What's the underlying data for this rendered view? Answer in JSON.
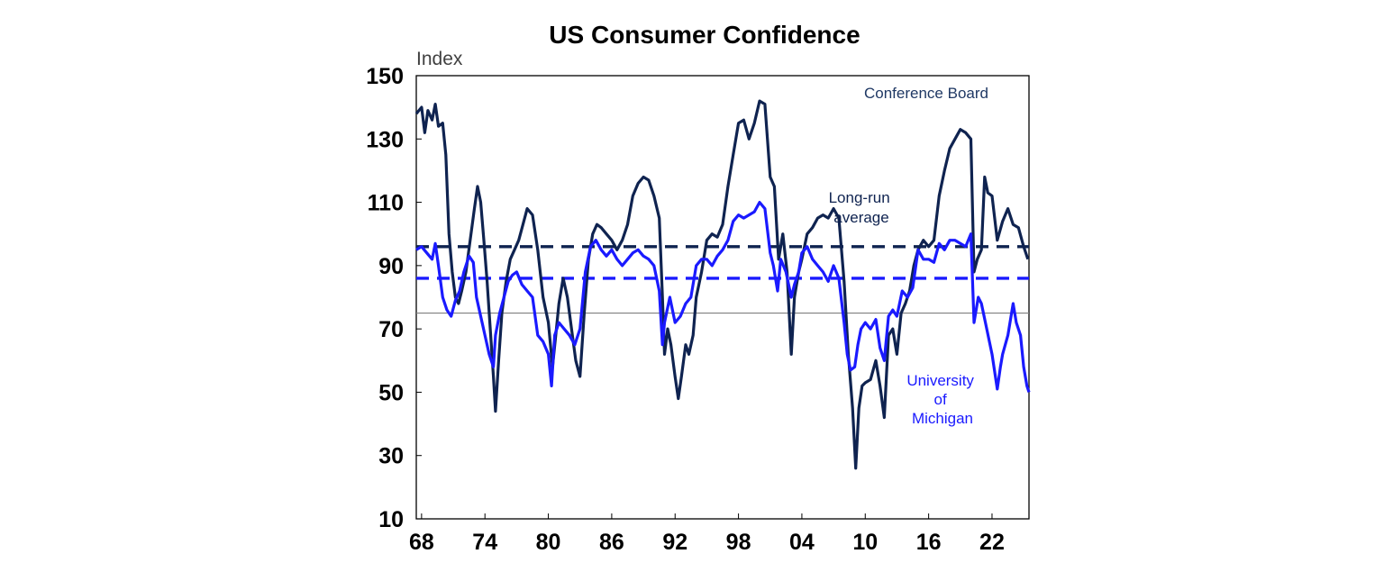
{
  "chart_data": {
    "type": "line",
    "title": "US Consumer Confidence",
    "ylabel": "Index",
    "xlabel": "",
    "ylim": [
      10,
      150
    ],
    "xlim": [
      1967.5,
      2025.5
    ],
    "yticks": [
      10,
      30,
      50,
      70,
      90,
      110,
      130,
      150
    ],
    "xticks": [
      {
        "label": "68",
        "x": 1968
      },
      {
        "label": "74",
        "x": 1974
      },
      {
        "label": "80",
        "x": 1980
      },
      {
        "label": "86",
        "x": 1986
      },
      {
        "label": "92",
        "x": 1992
      },
      {
        "label": "98",
        "x": 1998
      },
      {
        "label": "04",
        "x": 2004
      },
      {
        "label": "10",
        "x": 2010
      },
      {
        "label": "16",
        "x": 2016
      },
      {
        "label": "22",
        "x": 2022
      }
    ],
    "grid": false,
    "reference_line": {
      "y": 75,
      "color": "#808080"
    },
    "series": [
      {
        "name": "Conference Board",
        "color": "#0f2350",
        "long_run_average": 96,
        "points": [
          [
            1967.5,
            138
          ],
          [
            1968.0,
            140
          ],
          [
            1968.3,
            132
          ],
          [
            1968.6,
            139
          ],
          [
            1969.0,
            136
          ],
          [
            1969.3,
            141
          ],
          [
            1969.6,
            134
          ],
          [
            1970.0,
            135
          ],
          [
            1970.3,
            125
          ],
          [
            1970.6,
            100
          ],
          [
            1970.9,
            88
          ],
          [
            1971.2,
            80
          ],
          [
            1971.5,
            78
          ],
          [
            1971.8,
            82
          ],
          [
            1972.2,
            88
          ],
          [
            1972.6,
            98
          ],
          [
            1973.0,
            108
          ],
          [
            1973.3,
            115
          ],
          [
            1973.6,
            110
          ],
          [
            1973.9,
            98
          ],
          [
            1974.2,
            85
          ],
          [
            1974.5,
            70
          ],
          [
            1974.8,
            55
          ],
          [
            1975.0,
            44
          ],
          [
            1975.3,
            60
          ],
          [
            1975.6,
            75
          ],
          [
            1976.0,
            85
          ],
          [
            1976.4,
            92
          ],
          [
            1976.8,
            95
          ],
          [
            1977.2,
            98
          ],
          [
            1977.6,
            103
          ],
          [
            1978.0,
            108
          ],
          [
            1978.5,
            106
          ],
          [
            1979.0,
            95
          ],
          [
            1979.5,
            80
          ],
          [
            1980.0,
            72
          ],
          [
            1980.4,
            58
          ],
          [
            1980.7,
            68
          ],
          [
            1981.0,
            78
          ],
          [
            1981.4,
            86
          ],
          [
            1981.8,
            80
          ],
          [
            1982.2,
            70
          ],
          [
            1982.6,
            60
          ],
          [
            1983.0,
            55
          ],
          [
            1983.4,
            75
          ],
          [
            1983.8,
            92
          ],
          [
            1984.2,
            100
          ],
          [
            1984.6,
            103
          ],
          [
            1985.0,
            102
          ],
          [
            1985.5,
            100
          ],
          [
            1986.0,
            98
          ],
          [
            1986.5,
            95
          ],
          [
            1987.0,
            98
          ],
          [
            1987.5,
            103
          ],
          [
            1988.0,
            112
          ],
          [
            1988.5,
            116
          ],
          [
            1989.0,
            118
          ],
          [
            1989.5,
            117
          ],
          [
            1990.0,
            112
          ],
          [
            1990.5,
            105
          ],
          [
            1990.8,
            80
          ],
          [
            1991.0,
            62
          ],
          [
            1991.3,
            70
          ],
          [
            1991.6,
            65
          ],
          [
            1992.0,
            55
          ],
          [
            1992.3,
            48
          ],
          [
            1992.6,
            55
          ],
          [
            1993.0,
            65
          ],
          [
            1993.3,
            62
          ],
          [
            1993.7,
            68
          ],
          [
            1994.0,
            80
          ],
          [
            1994.5,
            88
          ],
          [
            1995.0,
            98
          ],
          [
            1995.5,
            100
          ],
          [
            1996.0,
            99
          ],
          [
            1996.5,
            103
          ],
          [
            1997.0,
            115
          ],
          [
            1997.5,
            125
          ],
          [
            1998.0,
            135
          ],
          [
            1998.5,
            136
          ],
          [
            1999.0,
            130
          ],
          [
            1999.5,
            135
          ],
          [
            2000.0,
            142
          ],
          [
            2000.5,
            141
          ],
          [
            2001.0,
            118
          ],
          [
            2001.4,
            115
          ],
          [
            2001.8,
            92
          ],
          [
            2002.2,
            100
          ],
          [
            2002.6,
            88
          ],
          [
            2003.0,
            62
          ],
          [
            2003.3,
            80
          ],
          [
            2003.7,
            88
          ],
          [
            2004.0,
            92
          ],
          [
            2004.5,
            100
          ],
          [
            2005.0,
            102
          ],
          [
            2005.5,
            105
          ],
          [
            2006.0,
            106
          ],
          [
            2006.5,
            105
          ],
          [
            2007.0,
            108
          ],
          [
            2007.5,
            105
          ],
          [
            2008.0,
            85
          ],
          [
            2008.4,
            62
          ],
          [
            2008.8,
            45
          ],
          [
            2009.1,
            26
          ],
          [
            2009.4,
            45
          ],
          [
            2009.7,
            52
          ],
          [
            2010.0,
            53
          ],
          [
            2010.5,
            54
          ],
          [
            2011.0,
            60
          ],
          [
            2011.4,
            52
          ],
          [
            2011.8,
            42
          ],
          [
            2012.2,
            68
          ],
          [
            2012.6,
            70
          ],
          [
            2013.0,
            62
          ],
          [
            2013.4,
            75
          ],
          [
            2013.8,
            78
          ],
          [
            2014.2,
            82
          ],
          [
            2014.6,
            90
          ],
          [
            2015.0,
            95
          ],
          [
            2015.5,
            98
          ],
          [
            2016.0,
            96
          ],
          [
            2016.5,
            98
          ],
          [
            2017.0,
            112
          ],
          [
            2017.5,
            120
          ],
          [
            2018.0,
            127
          ],
          [
            2018.5,
            130
          ],
          [
            2019.0,
            133
          ],
          [
            2019.5,
            132
          ],
          [
            2020.0,
            130
          ],
          [
            2020.3,
            88
          ],
          [
            2020.6,
            92
          ],
          [
            2021.0,
            95
          ],
          [
            2021.3,
            118
          ],
          [
            2021.6,
            113
          ],
          [
            2022.0,
            112
          ],
          [
            2022.5,
            98
          ],
          [
            2023.0,
            104
          ],
          [
            2023.5,
            108
          ],
          [
            2024.0,
            103
          ],
          [
            2024.5,
            102
          ],
          [
            2025.0,
            96
          ],
          [
            2025.4,
            92
          ]
        ]
      },
      {
        "name": "University of Michigan",
        "color": "#1a1aff",
        "long_run_average": 86,
        "points": [
          [
            1967.5,
            95
          ],
          [
            1968.0,
            96
          ],
          [
            1968.5,
            94
          ],
          [
            1969.0,
            92
          ],
          [
            1969.3,
            97
          ],
          [
            1969.6,
            90
          ],
          [
            1970.0,
            80
          ],
          [
            1970.4,
            76
          ],
          [
            1970.8,
            74
          ],
          [
            1971.2,
            79
          ],
          [
            1971.6,
            82
          ],
          [
            1972.0,
            88
          ],
          [
            1972.5,
            93
          ],
          [
            1972.9,
            91
          ],
          [
            1973.2,
            80
          ],
          [
            1973.6,
            74
          ],
          [
            1974.0,
            68
          ],
          [
            1974.4,
            62
          ],
          [
            1974.8,
            58
          ],
          [
            1975.0,
            68
          ],
          [
            1975.4,
            75
          ],
          [
            1975.8,
            80
          ],
          [
            1976.2,
            85
          ],
          [
            1976.6,
            87
          ],
          [
            1977.0,
            88
          ],
          [
            1977.5,
            84
          ],
          [
            1978.0,
            82
          ],
          [
            1978.5,
            80
          ],
          [
            1979.0,
            68
          ],
          [
            1979.5,
            66
          ],
          [
            1980.0,
            62
          ],
          [
            1980.3,
            52
          ],
          [
            1980.6,
            68
          ],
          [
            1981.0,
            72
          ],
          [
            1981.5,
            70
          ],
          [
            1982.0,
            68
          ],
          [
            1982.5,
            65
          ],
          [
            1983.0,
            70
          ],
          [
            1983.5,
            88
          ],
          [
            1984.0,
            96
          ],
          [
            1984.5,
            98
          ],
          [
            1985.0,
            95
          ],
          [
            1985.5,
            93
          ],
          [
            1986.0,
            95
          ],
          [
            1986.5,
            92
          ],
          [
            1987.0,
            90
          ],
          [
            1987.5,
            92
          ],
          [
            1988.0,
            94
          ],
          [
            1988.5,
            95
          ],
          [
            1989.0,
            93
          ],
          [
            1989.5,
            92
          ],
          [
            1990.0,
            90
          ],
          [
            1990.5,
            82
          ],
          [
            1990.8,
            65
          ],
          [
            1991.0,
            72
          ],
          [
            1991.5,
            80
          ],
          [
            1992.0,
            72
          ],
          [
            1992.5,
            74
          ],
          [
            1993.0,
            78
          ],
          [
            1993.5,
            80
          ],
          [
            1994.0,
            90
          ],
          [
            1994.5,
            92
          ],
          [
            1995.0,
            92
          ],
          [
            1995.5,
            90
          ],
          [
            1996.0,
            93
          ],
          [
            1996.5,
            95
          ],
          [
            1997.0,
            98
          ],
          [
            1997.5,
            104
          ],
          [
            1998.0,
            106
          ],
          [
            1998.5,
            105
          ],
          [
            1999.0,
            106
          ],
          [
            1999.5,
            107
          ],
          [
            2000.0,
            110
          ],
          [
            2000.5,
            108
          ],
          [
            2001.0,
            94
          ],
          [
            2001.3,
            90
          ],
          [
            2001.7,
            82
          ],
          [
            2002.0,
            92
          ],
          [
            2002.5,
            88
          ],
          [
            2003.0,
            80
          ],
          [
            2003.3,
            84
          ],
          [
            2003.7,
            88
          ],
          [
            2004.0,
            94
          ],
          [
            2004.5,
            96
          ],
          [
            2005.0,
            92
          ],
          [
            2005.5,
            90
          ],
          [
            2006.0,
            88
          ],
          [
            2006.5,
            85
          ],
          [
            2007.0,
            90
          ],
          [
            2007.5,
            86
          ],
          [
            2008.0,
            72
          ],
          [
            2008.3,
            62
          ],
          [
            2008.6,
            57
          ],
          [
            2009.0,
            58
          ],
          [
            2009.3,
            65
          ],
          [
            2009.6,
            70
          ],
          [
            2010.0,
            72
          ],
          [
            2010.5,
            70
          ],
          [
            2011.0,
            73
          ],
          [
            2011.4,
            64
          ],
          [
            2011.8,
            60
          ],
          [
            2012.2,
            74
          ],
          [
            2012.6,
            76
          ],
          [
            2013.0,
            74
          ],
          [
            2013.5,
            82
          ],
          [
            2014.0,
            80
          ],
          [
            2014.5,
            83
          ],
          [
            2015.0,
            95
          ],
          [
            2015.5,
            92
          ],
          [
            2016.0,
            92
          ],
          [
            2016.5,
            91
          ],
          [
            2017.0,
            97
          ],
          [
            2017.5,
            95
          ],
          [
            2018.0,
            98
          ],
          [
            2018.5,
            98
          ],
          [
            2019.0,
            97
          ],
          [
            2019.5,
            96
          ],
          [
            2020.0,
            100
          ],
          [
            2020.3,
            72
          ],
          [
            2020.7,
            80
          ],
          [
            2021.0,
            78
          ],
          [
            2021.5,
            70
          ],
          [
            2022.0,
            62
          ],
          [
            2022.5,
            51
          ],
          [
            2022.8,
            58
          ],
          [
            2023.0,
            62
          ],
          [
            2023.5,
            68
          ],
          [
            2024.0,
            78
          ],
          [
            2024.3,
            72
          ],
          [
            2024.7,
            68
          ],
          [
            2025.0,
            58
          ],
          [
            2025.3,
            52
          ],
          [
            2025.5,
            50
          ]
        ]
      }
    ],
    "annotations": [
      {
        "text": "Conference Board",
        "color": "#1f3864"
      },
      {
        "lines": [
          "Long-run",
          "average"
        ],
        "color": "#0f2350"
      },
      {
        "lines": [
          "University",
          "of",
          "Michigan"
        ],
        "color": "#1a1aff"
      }
    ]
  }
}
